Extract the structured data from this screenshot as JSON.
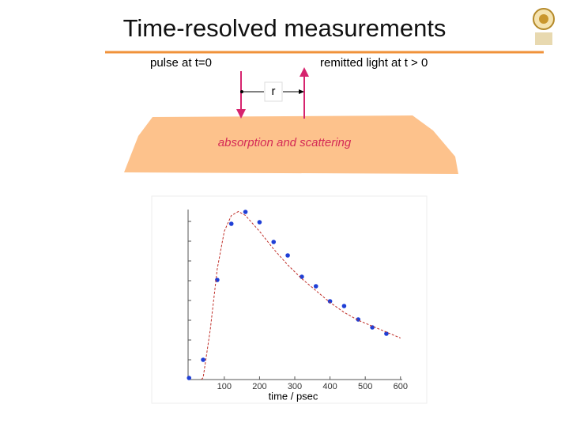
{
  "title": "Time-resolved measurements",
  "diagram": {
    "pulse_label": "pulse at t=0",
    "remitted_label": "remitted light at t > 0",
    "distance_label": "r",
    "medium_label": "absorption and scattering"
  },
  "chart_data": {
    "type": "scatter",
    "x_label": "time / psec",
    "xlim": [
      -5,
      605
    ],
    "xticks": [
      100,
      200,
      300,
      400,
      500,
      600
    ],
    "ylim": [
      0,
      9
    ],
    "yticks": [
      1,
      2,
      3,
      4,
      5,
      6,
      7,
      8
    ],
    "series": [
      {
        "mode": "markers",
        "color": "#1f3fd6",
        "x": [
          0,
          40,
          80,
          120,
          160,
          200,
          240,
          280,
          320,
          360,
          400,
          440,
          480,
          520,
          560
        ],
        "values": [
          0.08,
          1.0,
          5.04,
          7.88,
          8.48,
          7.96,
          6.96,
          6.28,
          5.2,
          4.72,
          3.96,
          3.72,
          3.04,
          2.64,
          2.32
        ]
      },
      {
        "mode": "dashed",
        "color": "#c0302a",
        "x": [
          35,
          40,
          60,
          80,
          100,
          120,
          140,
          160,
          180,
          200,
          240,
          280,
          320,
          360,
          400,
          440,
          480,
          520,
          560,
          600
        ],
        "values": [
          0,
          0.1,
          2.5,
          5.6,
          7.5,
          8.3,
          8.5,
          8.3,
          7.9,
          7.5,
          6.6,
          5.8,
          5.1,
          4.5,
          3.9,
          3.4,
          3.0,
          2.7,
          2.4,
          2.1
        ]
      }
    ]
  }
}
